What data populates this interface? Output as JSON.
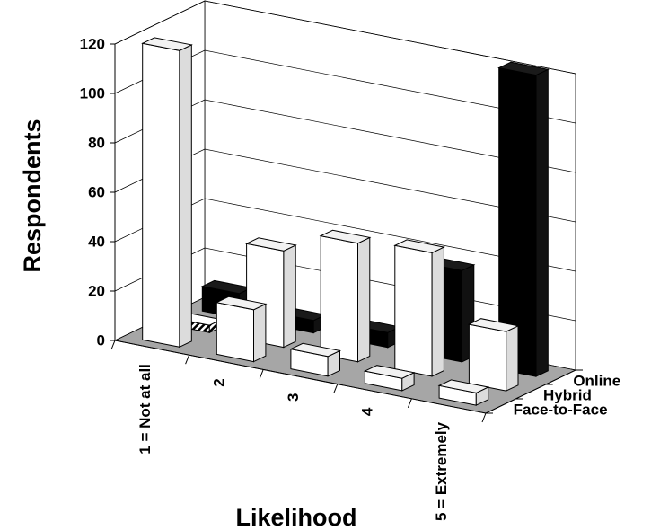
{
  "chart_data": {
    "type": "bar",
    "title": "",
    "xlabel": "Likelihood",
    "ylabel": "Respondents",
    "ylim": [
      0,
      120
    ],
    "yticks": [
      "0",
      "20",
      "40",
      "60",
      "80",
      "100",
      "120"
    ],
    "categories": [
      "1 = Not at all",
      "2",
      "3",
      "4",
      "5 = Extremely"
    ],
    "depth_labels": [
      "Online",
      "Hybrid",
      "Face-to-Face"
    ],
    "grid": true,
    "series": [
      {
        "name": "Face-to-Face",
        "values": [
          120,
          21,
          8,
          5,
          5
        ],
        "color": "#ffffff"
      },
      {
        "name": "Hybrid",
        "values": [
          3,
          39,
          48,
          50,
          24
        ],
        "color": "#ffffff"
      },
      {
        "name": "Online",
        "values": [
          10,
          5,
          6,
          37,
          122
        ],
        "color": "#000000"
      }
    ],
    "colors": {
      "floor": "#a6a6a6",
      "bar_outline": "#000000",
      "online_face": "#000000",
      "online_side": "#111111",
      "face_side": "#dcdcdc",
      "hybrid_first_pattern": "hatched"
    }
  }
}
